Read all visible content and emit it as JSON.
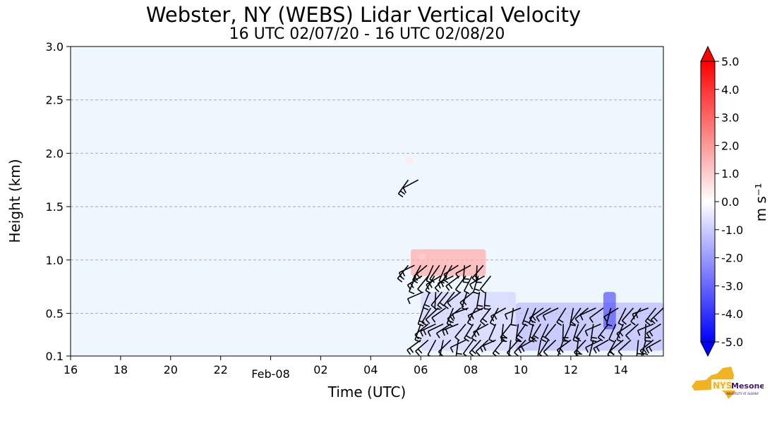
{
  "title": "Webster, NY (WEBS) Lidar Vertical Velocity",
  "subtitle": "16 UTC 02/07/20 - 16 UTC 02/08/20",
  "logo": {
    "text_main": "NYS",
    "text_brand": "Mesonet",
    "text_sub": "UNIVERSITY AT ALBANY"
  },
  "colors": {
    "background": "#eef6fe",
    "grid": "#a9a9a9",
    "barb": "#000000",
    "positive": "#ff0000",
    "negative": "#0000ff",
    "logo_gold": "#f0b323",
    "logo_purple": "#46166b"
  },
  "chart_data": {
    "type": "heatmap",
    "title": "Webster, NY (WEBS) Lidar Vertical Velocity",
    "subtitle": "16 UTC 02/07/20 - 16 UTC 02/08/20",
    "xlabel": "Time (UTC)",
    "ylabel": "Height (km)",
    "xlim": [
      16,
      39.7
    ],
    "ylim": [
      0.1,
      3.0
    ],
    "x_ticks": [
      {
        "value": 16,
        "label": "16"
      },
      {
        "value": 18,
        "label": "18"
      },
      {
        "value": 20,
        "label": "20"
      },
      {
        "value": 22,
        "label": "22"
      },
      {
        "value": 26,
        "label": "02"
      },
      {
        "value": 28,
        "label": "04"
      },
      {
        "value": 30,
        "label": "06"
      },
      {
        "value": 32,
        "label": "08"
      },
      {
        "value": 34,
        "label": "10"
      },
      {
        "value": 36,
        "label": "12"
      },
      {
        "value": 38,
        "label": "14"
      }
    ],
    "date_label": {
      "value": 24,
      "label": "Feb-08"
    },
    "y_ticks": [
      {
        "value": 0.1,
        "label": "0.1"
      },
      {
        "value": 0.5,
        "label": "0.5"
      },
      {
        "value": 1.0,
        "label": "1.0"
      },
      {
        "value": 1.5,
        "label": "1.5"
      },
      {
        "value": 2.0,
        "label": "2.0"
      },
      {
        "value": 2.5,
        "label": "2.5"
      },
      {
        "value": 3.0,
        "label": "3.0"
      }
    ],
    "grid": "horizontal dashed",
    "colorbar": {
      "label": "m s⁻¹",
      "min": -5.0,
      "max": 5.0,
      "tick_values": [
        5,
        4,
        3,
        2,
        1,
        0,
        -1,
        -2,
        -3,
        -4,
        -5
      ],
      "tick_labels": [
        "5.0",
        "4.0",
        "3.0",
        "2.0",
        "1.0",
        "0.0",
        "-1.0",
        "-2.0",
        "-3.0",
        "-4.0",
        "-5.0"
      ]
    },
    "velocity_patches": [
      {
        "x": 29.6,
        "y": 0.85,
        "w": 3.0,
        "h": 0.25,
        "value": 1.0
      },
      {
        "x": 29.9,
        "y": 1.0,
        "w": 0.3,
        "h": 0.06,
        "value": 0.6
      },
      {
        "x": 29.4,
        "y": 1.9,
        "w": 0.3,
        "h": 0.06,
        "value": 0.3
      },
      {
        "x": 30.0,
        "y": 0.15,
        "w": 3.8,
        "h": 0.55,
        "value": -0.5
      },
      {
        "x": 33.8,
        "y": 0.15,
        "w": 5.9,
        "h": 0.45,
        "value": -0.8
      },
      {
        "x": 37.3,
        "y": 0.35,
        "w": 0.5,
        "h": 0.35,
        "value": -2.0
      }
    ],
    "wind_barb_rows": [
      {
        "y": 1.75,
        "x_start": 29.5,
        "x_end": 29.9,
        "step": 0.4
      },
      {
        "y": 0.95,
        "x_start": 29.5,
        "x_end": 32.6,
        "step": 0.25
      },
      {
        "y": 0.85,
        "x_start": 29.8,
        "x_end": 32.8,
        "step": 0.25
      },
      {
        "y": 0.7,
        "x_start": 30.1,
        "x_end": 32.8,
        "step": 0.25
      },
      {
        "y": 0.55,
        "x_start": 30.1,
        "x_end": 39.7,
        "step": 0.3
      },
      {
        "y": 0.4,
        "x_start": 30.0,
        "x_end": 39.7,
        "step": 0.3
      },
      {
        "y": 0.25,
        "x_start": 30.0,
        "x_end": 39.7,
        "step": 0.3
      }
    ]
  }
}
